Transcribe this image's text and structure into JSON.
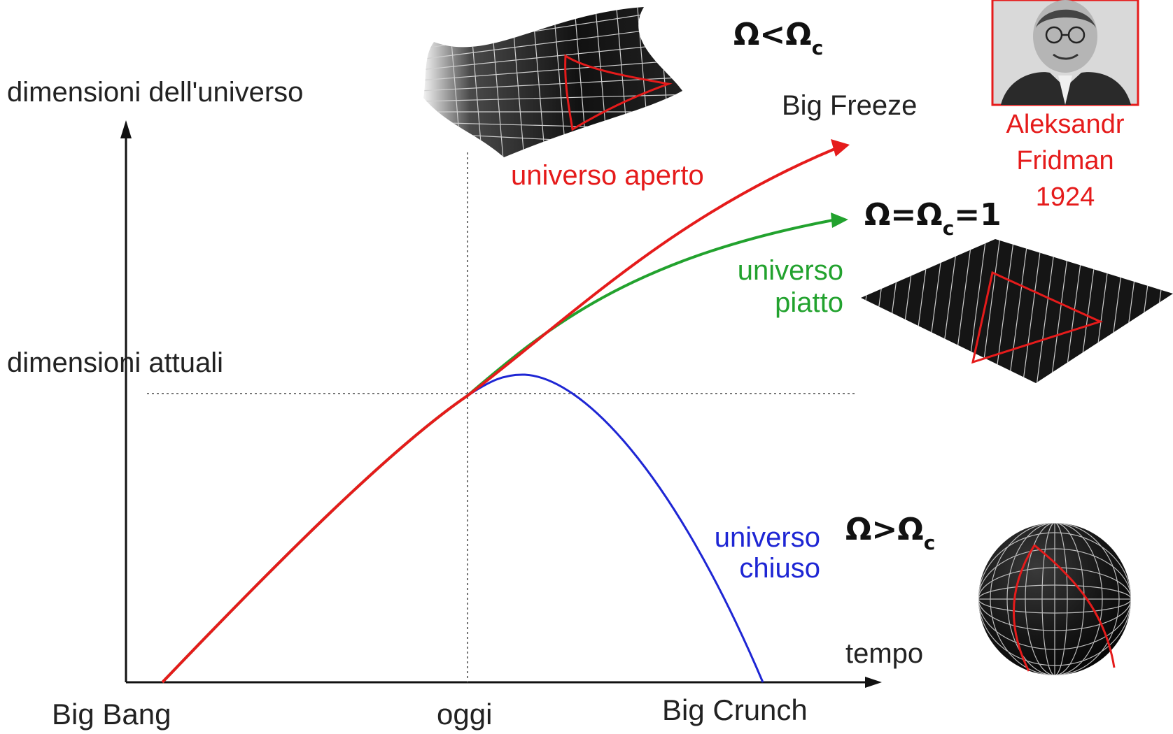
{
  "axis": {
    "y_label": "dimensioni dell'universo",
    "x_label": "tempo",
    "reference_label": "dimensioni attuali",
    "ticks": {
      "start": "Big Bang",
      "today": "oggi",
      "end": "Big Crunch"
    }
  },
  "curves": {
    "open": {
      "label": "universo aperto",
      "end_label": "Big Freeze",
      "color": "#e51b1b"
    },
    "flat": {
      "label_line1": "universo",
      "label_line2": "piatto",
      "color": "#22a22e"
    },
    "closed": {
      "label_line1": "universo",
      "label_line2": "chiuso",
      "color": "#1e26d4"
    }
  },
  "omega": {
    "open": {
      "base": "Ω<Ω",
      "sub": "c"
    },
    "flat": {
      "base": "Ω=Ω",
      "sub": "c",
      "tail": "=1"
    },
    "closed": {
      "base": "Ω>Ω",
      "sub": "c"
    }
  },
  "portrait": {
    "name_line1": "Aleksandr",
    "name_line2": "Fridman",
    "year": "1924"
  },
  "colors": {
    "accent_red": "#e51b1b",
    "axis": "#111111",
    "surface": "#151515"
  }
}
